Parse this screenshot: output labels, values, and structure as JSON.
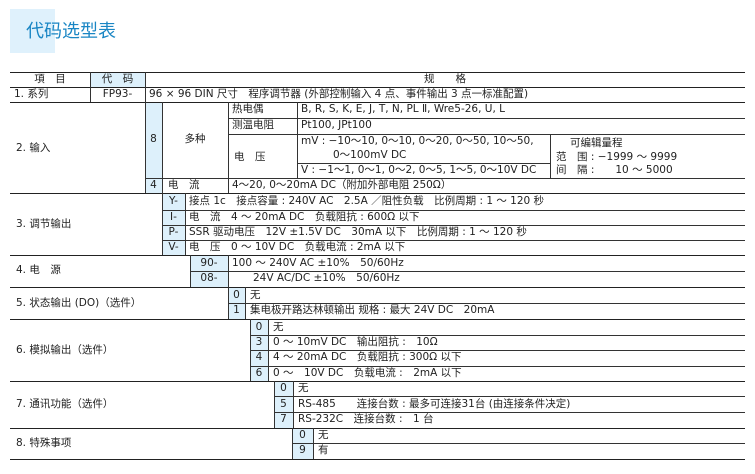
{
  "title": "代码选型表",
  "header": {
    "item": "項　目",
    "code": "代　码",
    "spec": "规　　格"
  },
  "row1": {
    "item": "1. 系列",
    "code": "FP93-",
    "spec": "96 × 96 DIN 尺寸　程序调节器 (外部控制输入 4 点、事件输出 3 点一标准配置)"
  },
  "row2": {
    "item": "2. 输入",
    "code8": "8",
    "multi": "多种",
    "tc": "热电偶",
    "tc_val": "B, R, S, K, E, J, T, N, PL Ⅱ, Wre5-26, U, L",
    "rtd": "测温电阻",
    "rtd_val": "Pt100, JPt100",
    "volt": "电　压",
    "mv1": "mV : −10～10, 0～10, 0～20, 0～50, 10～50,",
    "mv2": "0～100mV DC",
    "v": "V : −1～1, 0～1, 0～2, 0～5, 1～5, 0～10V DC",
    "range_title": "可编辑量程",
    "range": "范　围 : −1999 ～ 9999",
    "interval": "间　隔 :　　10 ～ 5000",
    "code4": "4",
    "current": "电　流",
    "current_val": "4～20, 0～20mA DC（附加外部电阻 250Ω）"
  },
  "row3": {
    "item": "3. 调节输出",
    "options": [
      {
        "code": "Y-",
        "spec": "接点 1c　接点容量 : 240V AC　2.5A ／阻性负载　比例周期 : 1 ～ 120 秒"
      },
      {
        "code": "I-",
        "spec": "电　流　4 ～ 20mA DC　负载阻抗 : 600Ω 以下"
      },
      {
        "code": "P-",
        "spec": "SSR 驱动电压　12V ±1.5V DC　30mA 以下　比例周期 : 1 ～ 120 秒"
      },
      {
        "code": "V-",
        "spec": "电　压　0 ～ 10V DC　负载电流 : 2mA 以下"
      }
    ]
  },
  "row4": {
    "item": "4. 电　源",
    "options": [
      {
        "code": "90-",
        "spec": "100 ～ 240V AC ±10%　50/60Hz"
      },
      {
        "code": "08-",
        "spec": "　　24V AC/DC ±10%　50/60Hz"
      }
    ]
  },
  "row5": {
    "item": "5. 状态输出 (DO)（选件）",
    "options": [
      {
        "code": "0",
        "spec": "无"
      },
      {
        "code": "1",
        "spec": "集电极开路达林顿输出 规格 : 最大 24V DC　20mA"
      }
    ]
  },
  "row6": {
    "item": "6. 模拟输出（选件）",
    "options": [
      {
        "code": "0",
        "spec": "无"
      },
      {
        "code": "3",
        "spec": "0 ～ 10mV DC　输出阻抗 :　10Ω"
      },
      {
        "code": "4",
        "spec": "4 ～ 20mA DC　负载阻抗 : 300Ω 以下"
      },
      {
        "code": "6",
        "spec": "0 ～　10V DC　负载电流 :　2mA 以下"
      }
    ]
  },
  "row7": {
    "item": "7. 通讯功能（选件）",
    "options": [
      {
        "code": "0",
        "spec": "无"
      },
      {
        "code": "5",
        "spec": "RS-485　　连接台数 : 最多可连接31台 (由连接条件决定)"
      },
      {
        "code": "7",
        "spec": "RS-232C　连接台数 :　1 台"
      }
    ]
  },
  "row8": {
    "item": "8. 特殊事项",
    "options": [
      {
        "code": "0",
        "spec": "无"
      },
      {
        "code": "9",
        "spec": "有"
      }
    ]
  }
}
